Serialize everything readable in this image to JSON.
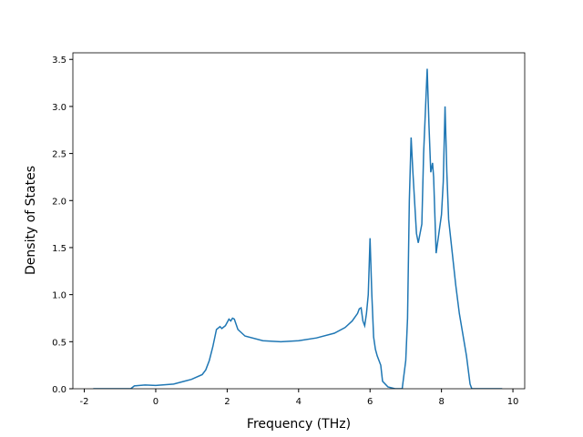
{
  "chart_data": {
    "type": "line",
    "x_label": "Frequency (THz)",
    "y_label": "Density of States",
    "xlim": [
      -2.32,
      10.33
    ],
    "ylim": [
      0,
      3.57
    ],
    "xticks": [
      -2,
      0,
      2,
      4,
      6,
      8,
      10
    ],
    "yticks": [
      {
        "value": 0,
        "label": "0.0"
      },
      {
        "value": 0.5,
        "label": "0.5"
      },
      {
        "value": 1,
        "label": "1.0"
      },
      {
        "value": 1.5,
        "label": "1.5"
      },
      {
        "value": 2,
        "label": "2.0"
      },
      {
        "value": 2.5,
        "label": "2.5"
      },
      {
        "value": 3,
        "label": "3.0"
      },
      {
        "value": 3.5,
        "label": "3.5"
      }
    ],
    "series": [
      {
        "color": "#1f77b4",
        "x": [
          -1.75,
          -0.7,
          -0.6,
          -0.3,
          0,
          0.5,
          0.8,
          1.0,
          1.3,
          1.4,
          1.5,
          1.6,
          1.7,
          1.8,
          1.85,
          1.95,
          2.05,
          2.1,
          2.15,
          2.2,
          2.3,
          2.5,
          3.0,
          3.5,
          4.0,
          4.5,
          5.0,
          5.3,
          5.5,
          5.65,
          5.7,
          5.75,
          5.8,
          5.85,
          5.9,
          5.95,
          6.0,
          6.05,
          6.1,
          6.15,
          6.2,
          6.3,
          6.35,
          6.5,
          6.7,
          6.9,
          7.0,
          7.05,
          7.1,
          7.15,
          7.2,
          7.3,
          7.35,
          7.45,
          7.5,
          7.6,
          7.65,
          7.7,
          7.75,
          7.78,
          7.85,
          8.0,
          8.05,
          8.1,
          8.15,
          8.2,
          8.3,
          8.4,
          8.5,
          8.7,
          8.8,
          8.85,
          9.7
        ],
        "values": [
          0,
          0,
          0.03,
          0.04,
          0.035,
          0.05,
          0.08,
          0.1,
          0.15,
          0.2,
          0.3,
          0.45,
          0.63,
          0.66,
          0.64,
          0.67,
          0.74,
          0.72,
          0.75,
          0.74,
          0.63,
          0.56,
          0.51,
          0.5,
          0.51,
          0.54,
          0.59,
          0.65,
          0.72,
          0.8,
          0.85,
          0.86,
          0.72,
          0.67,
          0.8,
          1.0,
          1.6,
          1.0,
          0.55,
          0.42,
          0.35,
          0.25,
          0.08,
          0.02,
          0,
          0,
          0.3,
          0.75,
          2.0,
          2.67,
          2.3,
          1.65,
          1.55,
          1.75,
          2.5,
          3.4,
          2.8,
          2.3,
          2.4,
          2.25,
          1.44,
          1.85,
          2.2,
          3.0,
          2.3,
          1.8,
          1.45,
          1.1,
          0.8,
          0.35,
          0.05,
          0,
          0
        ]
      }
    ]
  }
}
